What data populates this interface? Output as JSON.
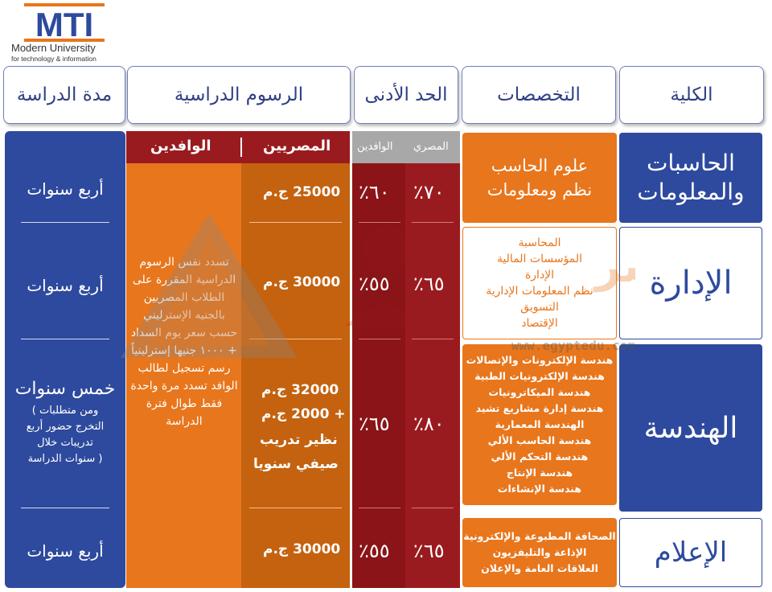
{
  "logo": {
    "mark": "MTI",
    "name": "Modern University",
    "sub": "for technology & information"
  },
  "headers": {
    "duration": "مدة الدراسة",
    "fees": "الرسوم الدراسية",
    "min": "الحد الأدنى",
    "specs": "التخصصات",
    "faculty": "الكلية"
  },
  "fees_sub": {
    "egyptian": "المصريين",
    "foreign": "الوافدين"
  },
  "min_sub": {
    "egyptian": "المصري",
    "foreign": "الوافدين"
  },
  "foreign_note": "تسدد نفس الرسوم الدراسية المقررة على الطلاب المصريين بالجنيه الإسترليني حسب سعر يوم السداد + ١٠٠٠ جنيها إسترلينياً رسم تسجيل لطالب الوافد تسدد مرة واحدة فقط طوال فترة الدراسة",
  "rows": [
    {
      "faculty": [
        "الحاسبات",
        "والمعلومات"
      ],
      "specs": [
        "علوم الحاسب",
        "نظم ومعلومات"
      ],
      "min_egy": "٧٠٪",
      "min_for": "٦٠٪",
      "fee_egy": [
        "25000 ج.م"
      ],
      "duration": [
        "أربع سنوات"
      ]
    },
    {
      "faculty": [
        "الإدارة"
      ],
      "specs": [
        "المحاسبة",
        "المؤسسات المالية",
        "الإدارة",
        "نظم المعلومات الإدارية",
        "التسويق",
        "الإقتصاد"
      ],
      "min_egy": "٦٥٪",
      "min_for": "٥٥٪",
      "fee_egy": [
        "30000 ج.م"
      ],
      "duration": [
        "أربع سنوات"
      ]
    },
    {
      "faculty": [
        "الهندسة"
      ],
      "specs": [
        "هندسة الإلكترونات والإتصالات",
        "هندسة الإلكترونيات الطبية",
        "هندسة الميكاترونيات",
        "هندسة إدارة مشاريع تشيد",
        "الهندسة المعمارية",
        "هندسة الحاسب الألي",
        "هندسة التحكم الألي",
        "هندسة الإنتاج",
        "هندسة الإنشاءات"
      ],
      "min_egy": "٨٠٪",
      "min_for": "٦٥٪",
      "fee_egy": [
        "32000 ج.م",
        "+ 2000 ج.م",
        "نظير تدريب",
        "صيفي سنويا"
      ],
      "duration": [
        "خمس سنوات",
        "ومن متطلبات )",
        "التخرج حضور أربع",
        "تدريبات خلال",
        "( سنوات الدراسة"
      ]
    },
    {
      "faculty": [
        "الإعلام"
      ],
      "specs": [
        "الصحافة المطبوعة والإلكترونية",
        "الإذاعة والتليفزيون",
        "العلاقات العامة والإعلان"
      ],
      "min_egy": "٦٥٪",
      "min_for": "٥٥٪",
      "fee_egy": [
        "30000 ج.م"
      ],
      "duration": [
        "أربع سنوات"
      ]
    }
  ],
  "watermark": {
    "text": "التعليم في مصر",
    "url": "www.egyptedu.com"
  },
  "colors": {
    "blue": "#2e4a9e",
    "orange": "#e8761c",
    "dark_orange": "#c4620f",
    "red": "#9a1b1f",
    "gray": "#a8a8a8"
  }
}
